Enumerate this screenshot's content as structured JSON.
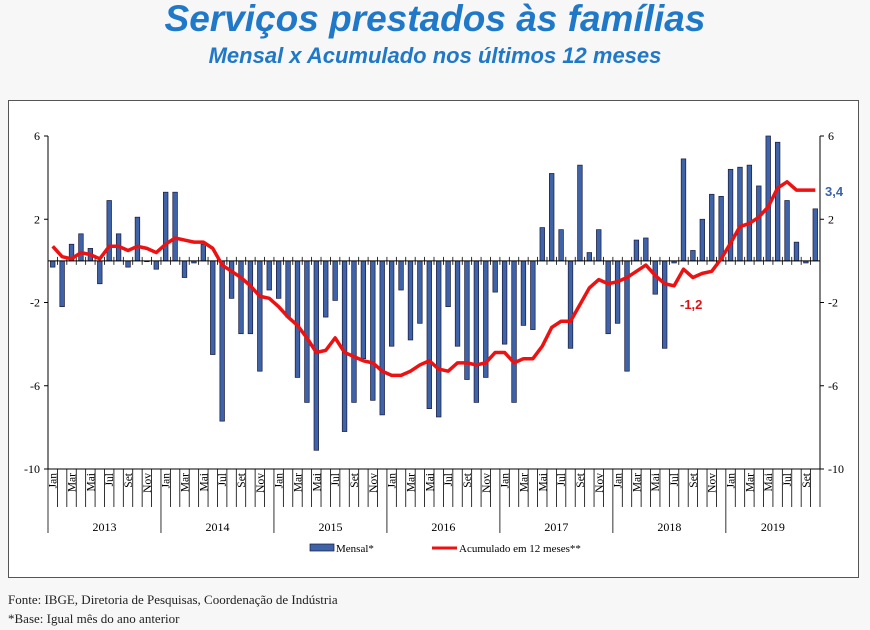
{
  "title": "Serviços prestados às famílias",
  "subtitle": "Mensal x Acumulado nos últimos 12 meses",
  "footer": {
    "source": "Fonte: IBGE, Diretoria de Pesquisas, Coordenação de Indústria",
    "note": "*Base: Igual mês do ano anterior"
  },
  "chart_data": {
    "type": "bar+line",
    "title": "Serviços prestados às famílias",
    "subtitle": "Mensal x Acumulado nos últimos 12 meses",
    "ylim": [
      -10,
      6
    ],
    "y_ticks": [
      6,
      2,
      -2,
      -6,
      -10
    ],
    "y_axis_sides": "left and right",
    "grid": false,
    "legend_placement": "bottom",
    "years": [
      "2013",
      "2014",
      "2015",
      "2016",
      "2017",
      "2018",
      "2019"
    ],
    "month_tick_labels": [
      "Jan",
      "Mar",
      "Mai",
      "Jul",
      "Set",
      "Nov"
    ],
    "start": "2013-01",
    "end": "2019-10",
    "series": [
      {
        "name": "Mensal*",
        "type": "bar",
        "color": "#3e63a8",
        "values": [
          -0.3,
          -2.2,
          0.8,
          1.3,
          0.6,
          -1.1,
          2.9,
          1.3,
          -0.3,
          2.1,
          0,
          -0.4,
          3.3,
          3.3,
          -0.8,
          -0.1,
          0.8,
          -4.5,
          -7.7,
          -1.8,
          -3.5,
          -3.5,
          -5.3,
          -1.4,
          -1.8,
          -2.7,
          -5.6,
          -6.8,
          -9.1,
          -2.7,
          -1.9,
          -8.2,
          -6.8,
          -4.7,
          -6.7,
          -7.4,
          -4.1,
          -1.4,
          -3.8,
          -3.0,
          -7.1,
          -7.5,
          -2.2,
          -4.1,
          -5.7,
          -6.8,
          -5.6,
          -1.5,
          -4.0,
          -6.8,
          -3.1,
          -3.3,
          1.6,
          4.2,
          1.5,
          -4.2,
          4.6,
          0.4,
          1.5,
          -3.5,
          -3.0,
          -5.3,
          1.0,
          1.1,
          -1.6,
          -4.2,
          -0.1,
          4.9,
          0.5,
          2.0,
          3.2,
          3.1,
          4.4,
          4.5,
          4.6,
          3.6,
          6.0,
          5.7,
          2.9,
          0.9,
          -0.1,
          2.5
        ]
      },
      {
        "name": "Acumulado em 12 meses**",
        "type": "line",
        "color": "#ee1111",
        "values": [
          0.7,
          0.2,
          0.1,
          0.4,
          0.3,
          0.1,
          0.7,
          0.7,
          0.5,
          0.7,
          0.6,
          0.4,
          0.8,
          1.1,
          1.0,
          0.9,
          0.9,
          0.6,
          -0.2,
          -0.5,
          -0.8,
          -1.2,
          -1.7,
          -1.8,
          -2.2,
          -2.7,
          -3.1,
          -3.7,
          -4.4,
          -4.3,
          -3.7,
          -4.4,
          -4.6,
          -4.8,
          -4.9,
          -5.3,
          -5.5,
          -5.5,
          -5.3,
          -5.0,
          -4.8,
          -5.2,
          -5.3,
          -4.9,
          -4.9,
          -5.0,
          -4.9,
          -4.4,
          -4.4,
          -4.9,
          -4.7,
          -4.7,
          -4.1,
          -3.2,
          -2.9,
          -2.9,
          -2.1,
          -1.3,
          -0.9,
          -1.1,
          -1.0,
          -0.8,
          -0.5,
          -0.2,
          -0.7,
          -1.1,
          -1.2,
          -0.4,
          -0.8,
          -0.6,
          -0.5,
          0.1,
          0.85,
          1.65,
          1.8,
          2.1,
          2.6,
          3.5,
          3.8,
          3.4,
          3.4,
          3.4
        ]
      }
    ],
    "annotations": [
      {
        "text": "-1,2",
        "x": "2018-07",
        "series": "Acumulado em 12 meses**",
        "color": "#dd1111"
      },
      {
        "text": "3,4",
        "x": "2019-10",
        "series": "Acumulado em 12 meses**",
        "color": "#3e63a8"
      }
    ]
  }
}
